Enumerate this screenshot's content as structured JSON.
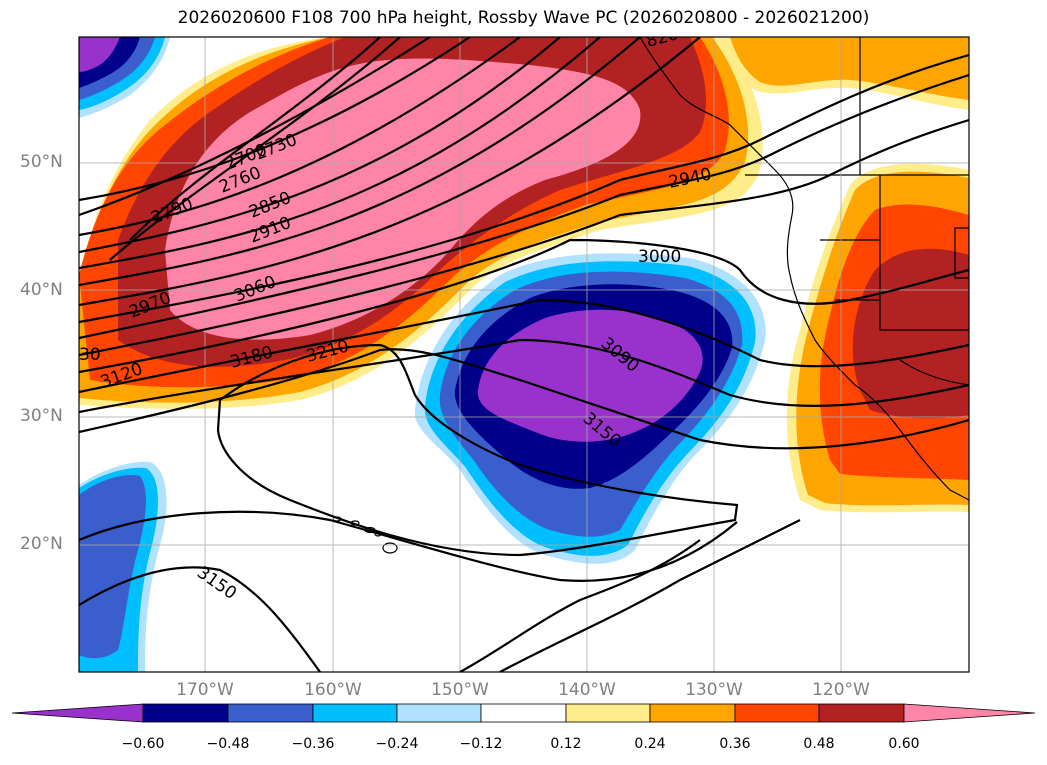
{
  "title": "2026020600 F108 700 hPa height, Rossby Wave PC (2026020800 - 2026021200)",
  "lat_labels": [
    "50°N",
    "40°N",
    "30°N",
    "20°N"
  ],
  "lon_labels": [
    "170°W",
    "160°W",
    "150°W",
    "140°W",
    "130°W",
    "120°W"
  ],
  "contour_labels": [
    "2700",
    "2730",
    "2760",
    "2790",
    "2850",
    "2910",
    "2970",
    "3060",
    "30",
    "3120",
    "3180",
    "3210",
    "3000",
    "2940",
    "3090",
    "3150",
    "3150",
    "820"
  ],
  "colorbar": {
    "ticks": [
      "−0.60",
      "−0.48",
      "−0.36",
      "−0.24",
      "−0.12",
      "0.12",
      "0.24",
      "0.36",
      "0.48",
      "0.60"
    ],
    "colors": [
      "#9932CC",
      "#00008B",
      "#3A5FCD",
      "#00BFFF",
      "#B0E2FF",
      "#FFFFFF",
      "#FFEC8B",
      "#FFA500",
      "#FF4500",
      "#B22222",
      "#FF85A8"
    ]
  }
}
